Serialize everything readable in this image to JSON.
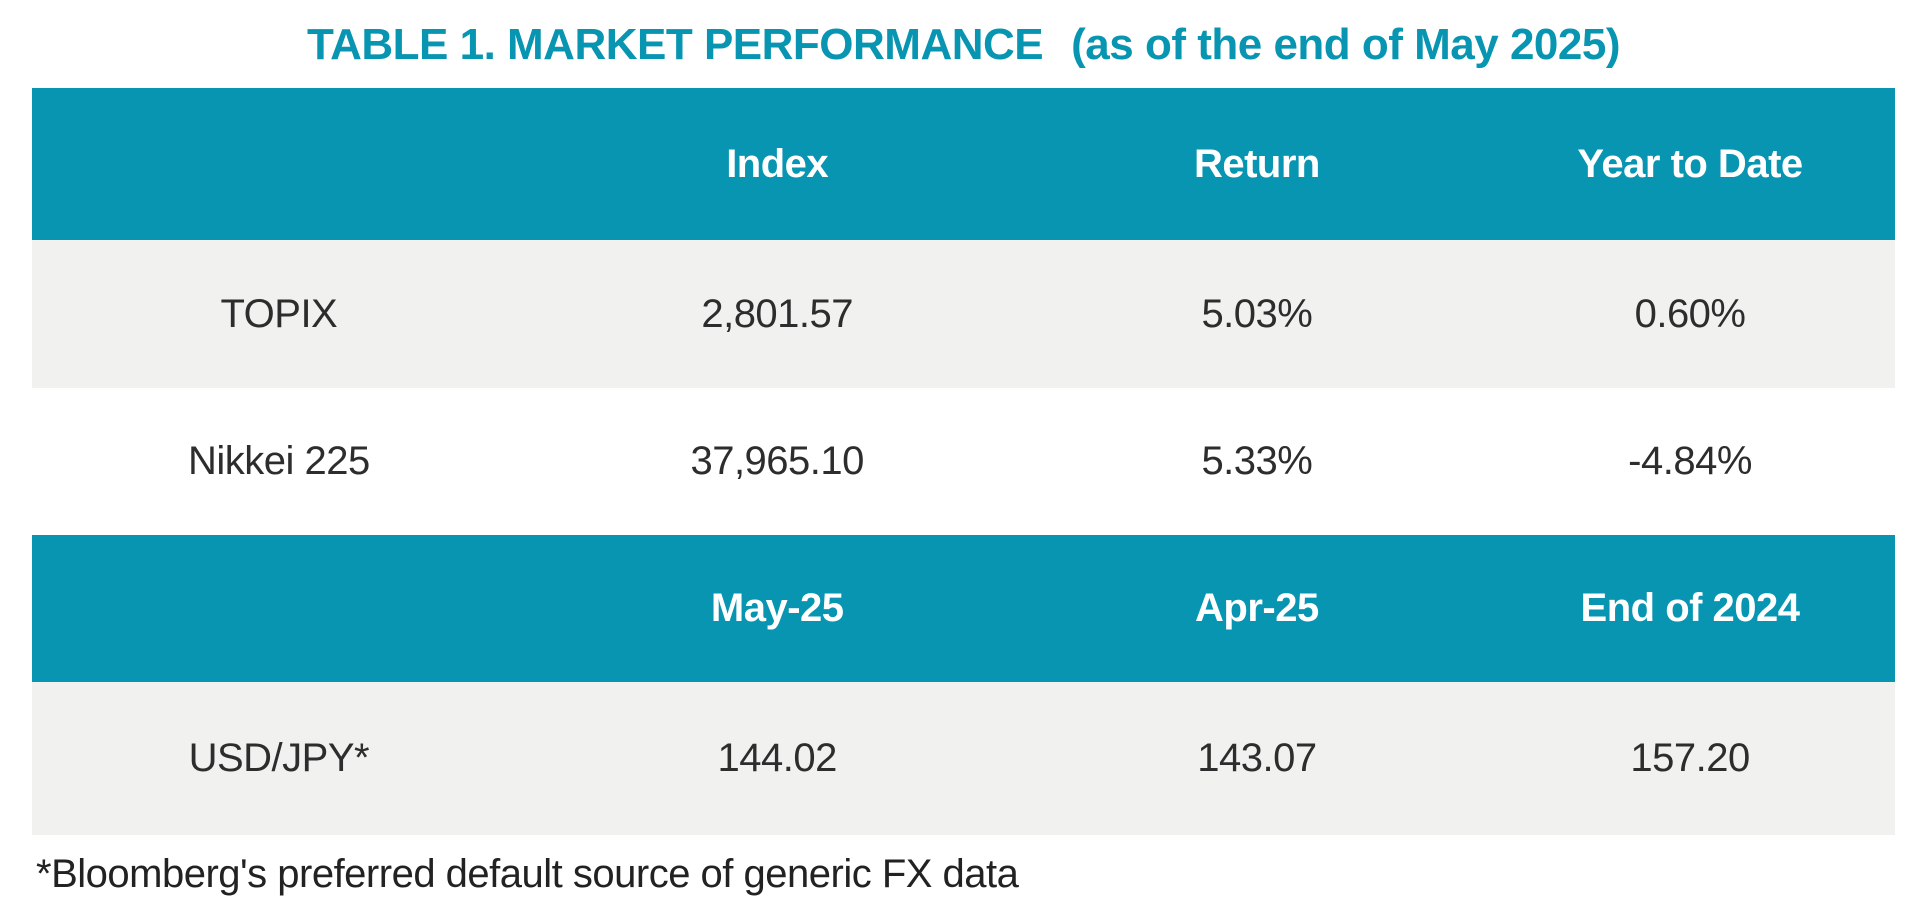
{
  "page": {
    "title_main": "TABLE 1. MARKET PERFORMANCE",
    "title_suffix": "(as of the end of May 2025)",
    "footnote": "*Bloomberg's preferred default source of generic FX data"
  },
  "colors": {
    "header_bg": "#0795b1",
    "header_text": "#ffffff",
    "title_text": "#0795b1",
    "alt_row_bg": "#f1f1f0",
    "body_text": "#2d2d2d"
  },
  "table1": {
    "columns": [
      "",
      "Index",
      "Return",
      "Year to Date"
    ],
    "rows": [
      {
        "label": "TOPIX",
        "values": [
          "2,801.57",
          "5.03%",
          "0.60%"
        ]
      },
      {
        "label": "Nikkei 225",
        "values": [
          "37,965.10",
          "5.33%",
          "-4.84%"
        ]
      }
    ]
  },
  "table2": {
    "columns": [
      "",
      "May-25",
      "Apr-25",
      "End of 2024"
    ],
    "rows": [
      {
        "label": "USD/JPY*",
        "values": [
          "144.02",
          "143.07",
          "157.20"
        ]
      }
    ]
  },
  "chart_data": {
    "type": "table",
    "title": "TABLE 1. MARKET PERFORMANCE (as of the end of May 2025)",
    "sections": [
      {
        "columns": [
          "",
          "Index",
          "Return",
          "Year to Date"
        ],
        "rows": [
          [
            "TOPIX",
            "2,801.57",
            "5.03%",
            "0.60%"
          ],
          [
            "Nikkei 225",
            "37,965.10",
            "5.33%",
            "-4.84%"
          ]
        ]
      },
      {
        "columns": [
          "",
          "May-25",
          "Apr-25",
          "End of 2024"
        ],
        "rows": [
          [
            "USD/JPY*",
            "144.02",
            "143.07",
            "157.20"
          ]
        ]
      }
    ],
    "footnote": "*Bloomberg's preferred default source of generic FX data"
  }
}
